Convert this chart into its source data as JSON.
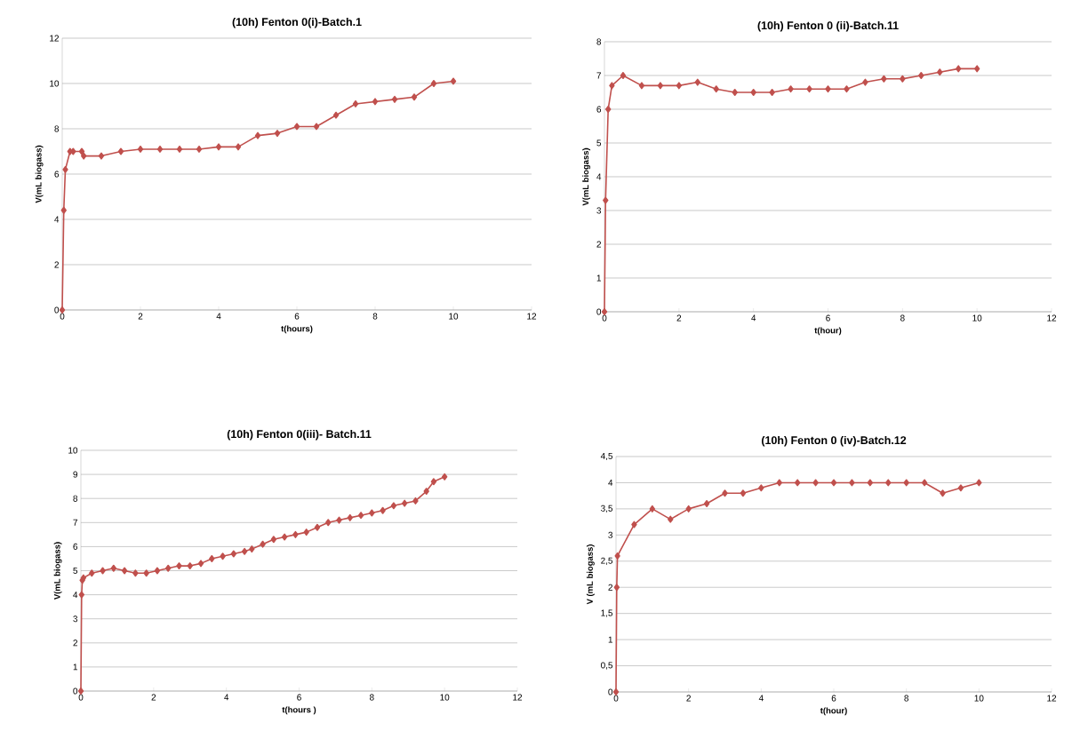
{
  "chart_data": [
    {
      "type": "line",
      "title": "(10h) Fenton 0(i)-Batch.1",
      "xlabel": "t(hours)",
      "ylabel": "V(mL biogass)",
      "marker": "diamond",
      "grid": "y",
      "xlim": [
        0,
        12
      ],
      "xticks": [
        0,
        2,
        4,
        6,
        8,
        10,
        12
      ],
      "ylim": [
        0,
        12
      ],
      "yticks": [
        0,
        2,
        4,
        6,
        8,
        10,
        12
      ],
      "series": [
        {
          "color": "#c0504d",
          "x": [
            0,
            0.04,
            0.08,
            0.2,
            0.28,
            0.5,
            0.55,
            1,
            1.5,
            2,
            2.5,
            3,
            3.5,
            4,
            4.5,
            5,
            5.5,
            6,
            6.5,
            7,
            7.5,
            8,
            8.5,
            9,
            9.5,
            10
          ],
          "values": [
            0,
            4.4,
            6.2,
            7.0,
            7.0,
            7.0,
            6.8,
            6.8,
            7.0,
            7.1,
            7.1,
            7.1,
            7.1,
            7.2,
            7.2,
            7.7,
            7.8,
            8.1,
            8.1,
            8.6,
            9.1,
            9.2,
            9.3,
            9.4,
            10.0,
            10.1
          ]
        }
      ]
    },
    {
      "type": "line",
      "title": "(10h) Fenton 0 (ii)-Batch.11",
      "xlabel": "t(hour)",
      "ylabel": "V(mL biogass)",
      "marker": "diamond",
      "grid": "y",
      "xlim": [
        0,
        12
      ],
      "xticks": [
        0,
        2,
        4,
        6,
        8,
        10,
        12
      ],
      "ylim": [
        0,
        8
      ],
      "yticks": [
        0,
        1,
        2,
        3,
        4,
        5,
        6,
        7,
        8
      ],
      "series": [
        {
          "color": "#c0504d",
          "x": [
            0,
            0.03,
            0.1,
            0.2,
            0.5,
            1,
            1.5,
            2,
            2.5,
            3,
            3.5,
            4,
            4.5,
            5,
            5.5,
            6,
            6.5,
            7,
            7.5,
            8,
            8.5,
            9,
            9.5,
            10
          ],
          "values": [
            0,
            3.3,
            6.0,
            6.7,
            7.0,
            6.7,
            6.7,
            6.7,
            6.8,
            6.6,
            6.5,
            6.5,
            6.5,
            6.6,
            6.6,
            6.6,
            6.6,
            6.8,
            6.9,
            6.9,
            7.0,
            7.1,
            7.2,
            7.2
          ]
        }
      ]
    },
    {
      "type": "line",
      "title": "(10h) Fenton 0(iii)- Batch.11",
      "xlabel": "t(hours )",
      "ylabel": "V(mL biogass)",
      "marker": "diamond",
      "grid": "y",
      "xlim": [
        0,
        12
      ],
      "xticks": [
        0,
        2,
        4,
        6,
        8,
        10,
        12
      ],
      "ylim": [
        0,
        10
      ],
      "yticks": [
        0,
        1,
        2,
        3,
        4,
        5,
        6,
        7,
        8,
        9,
        10
      ],
      "series": [
        {
          "color": "#c0504d",
          "x": [
            0,
            0.02,
            0.04,
            0.07,
            0.3,
            0.6,
            0.9,
            1.2,
            1.5,
            1.8,
            2.1,
            2.4,
            2.7,
            3.0,
            3.3,
            3.6,
            3.9,
            4.2,
            4.5,
            4.7,
            5.0,
            5.3,
            5.6,
            5.9,
            6.2,
            6.5,
            6.8,
            7.1,
            7.4,
            7.7,
            8.0,
            8.3,
            8.6,
            8.9,
            9.2,
            9.5,
            9.7,
            10.0
          ],
          "values": [
            0,
            4.0,
            4.6,
            4.7,
            4.9,
            5.0,
            5.1,
            5.0,
            4.9,
            4.9,
            5.0,
            5.1,
            5.2,
            5.2,
            5.3,
            5.5,
            5.6,
            5.7,
            5.8,
            5.9,
            6.1,
            6.3,
            6.4,
            6.5,
            6.6,
            6.8,
            7.0,
            7.1,
            7.2,
            7.3,
            7.4,
            7.5,
            7.7,
            7.8,
            7.9,
            8.3,
            8.7,
            8.9
          ]
        }
      ]
    },
    {
      "type": "line",
      "title": "(10h) Fenton 0 (iv)-Batch.12",
      "xlabel": "t(hour)",
      "ylabel": "V (mL biogass)",
      "marker": "diamond",
      "grid": "y",
      "xlim": [
        0,
        12
      ],
      "xticks": [
        0,
        2,
        4,
        6,
        8,
        10,
        12
      ],
      "ylim": [
        0,
        4.5
      ],
      "yticks": [
        0,
        {
          "value": 0.5,
          "label": "0,5"
        },
        1,
        {
          "value": 1.5,
          "label": "1,5"
        },
        2,
        {
          "value": 2.5,
          "label": "2,5"
        },
        3,
        {
          "value": 3.5,
          "label": "3,5"
        },
        4,
        {
          "value": 4.5,
          "label": "4,5"
        }
      ],
      "series": [
        {
          "color": "#c0504d",
          "x": [
            0,
            0.02,
            0.04,
            0.5,
            1,
            1.5,
            2,
            2.5,
            3,
            3.5,
            4,
            4.5,
            5,
            5.5,
            6,
            6.5,
            7,
            7.5,
            8,
            8.5,
            9,
            9.5,
            10
          ],
          "values": [
            0,
            2.0,
            2.6,
            3.2,
            3.5,
            3.3,
            3.5,
            3.6,
            3.8,
            3.8,
            3.9,
            4.0,
            4.0,
            4.0,
            4.0,
            4.0,
            4.0,
            4.0,
            4.0,
            4.0,
            3.8,
            3.9,
            4.0
          ]
        }
      ]
    }
  ]
}
